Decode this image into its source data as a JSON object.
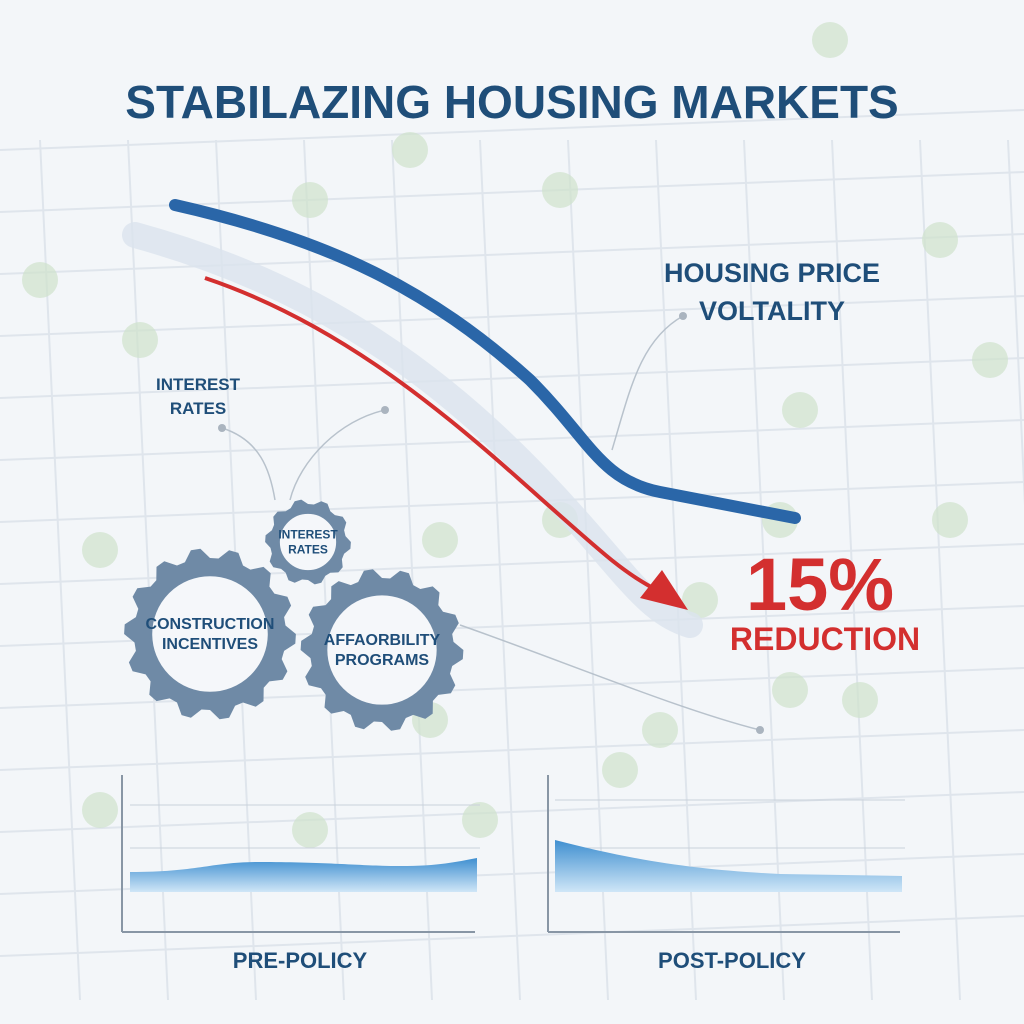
{
  "title": "STABILAZING HOUSING MARKETS",
  "callouts": {
    "volatility": [
      "HOUSING PRICE",
      "VOLTALITY"
    ],
    "interest": [
      "INTEREST",
      "RATES"
    ]
  },
  "gears": [
    {
      "label": [
        "INTEREST",
        "RATES"
      ]
    },
    {
      "label": [
        "CONSTRUCTION",
        "INCENTIVES"
      ]
    },
    {
      "label": [
        "AFFAORBILITY",
        "PROGRAMS"
      ]
    }
  ],
  "result": {
    "figure": "15%",
    "label": "REDUCTION"
  },
  "panels": [
    {
      "label": "PRE-POLICY"
    },
    {
      "label": "POST-POLICY"
    }
  ]
}
